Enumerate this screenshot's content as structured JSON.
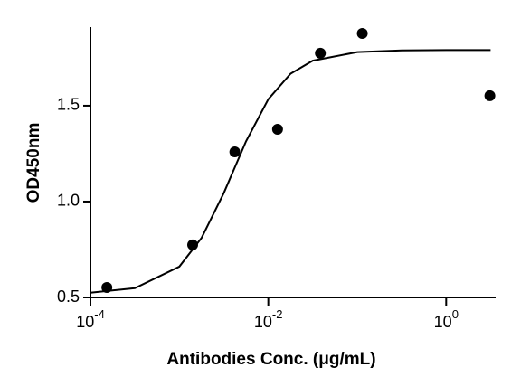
{
  "chart_data": {
    "type": "scatter",
    "x_label": "Antibodies Conc. (μg/mL)",
    "y_label": "OD450nm",
    "x_log": true,
    "xlim": [
      0.0001,
      3.6
    ],
    "ylim": [
      0.5,
      1.91
    ],
    "xticks": [
      {
        "value": 0.0001,
        "label": "10",
        "sup": "-4"
      },
      {
        "value": 0.01,
        "label": "10",
        "sup": "-2"
      },
      {
        "value": 1,
        "label": "10",
        "sup": "0"
      }
    ],
    "yticks": [
      0.5,
      {
        "value": 1,
        "label": "1.0"
      },
      1.5
    ],
    "series": [
      {
        "type": "scatter",
        "color": "#000000",
        "x": [
          0.000153,
          0.00141,
          0.0042,
          0.0127,
          0.0385,
          0.114,
          3.1
        ],
        "values": [
          0.552,
          0.774,
          1.259,
          1.377,
          1.774,
          1.877,
          1.552
        ]
      },
      {
        "type": "line",
        "color": "#000000",
        "x": [
          0.0001,
          0.000316,
          0.001,
          0.00178,
          0.00316,
          0.00562,
          0.01,
          0.0178,
          0.0316,
          0.1,
          0.316,
          1,
          3.16
        ],
        "values": [
          0.525,
          0.548,
          0.661,
          0.811,
          1.045,
          1.314,
          1.534,
          1.667,
          1.735,
          1.78,
          1.789,
          1.79,
          1.79
        ]
      }
    ]
  }
}
